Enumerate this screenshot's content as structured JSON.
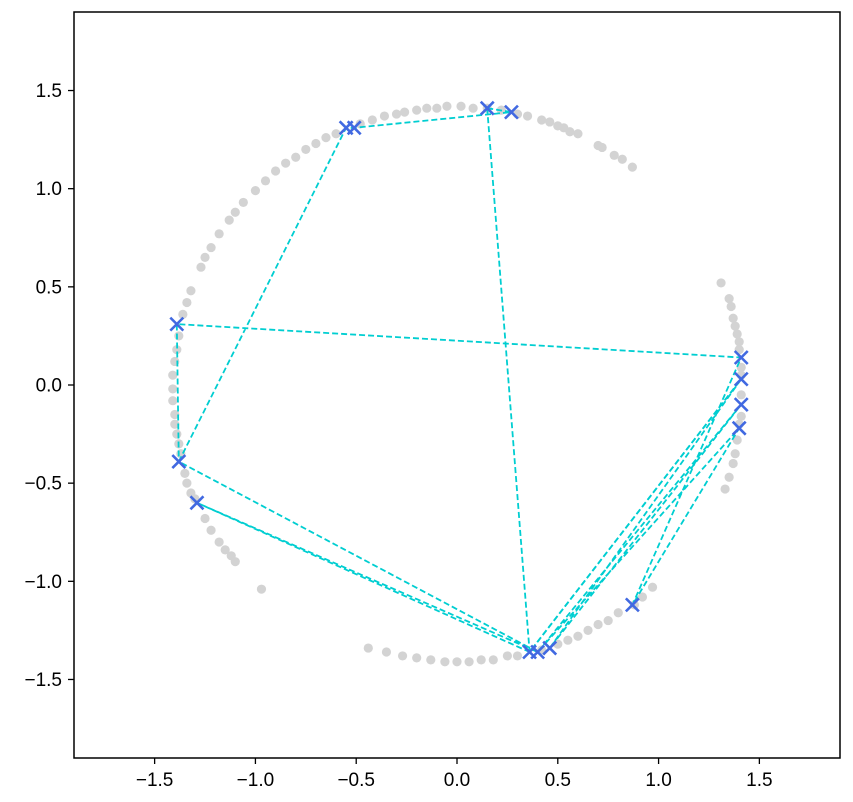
{
  "chart_data": {
    "type": "scatter",
    "title": "",
    "xlabel": "",
    "ylabel": "",
    "xlim": [
      -1.9,
      1.9
    ],
    "ylim": [
      -1.9,
      1.9
    ],
    "grid": false,
    "x_ticks": [
      -1.5,
      -1.0,
      -0.5,
      0.0,
      0.5,
      1.0,
      1.5
    ],
    "y_ticks": [
      -1.5,
      -1.0,
      -0.5,
      0.0,
      0.5,
      1.0,
      1.5
    ],
    "x_tick_labels": [
      "−1.5",
      "−1.0",
      "−0.5",
      "0.0",
      "0.5",
      "1.0",
      "1.5"
    ],
    "y_tick_labels": [
      "−1.5",
      "−1.0",
      "−0.5",
      "0.0",
      "0.5",
      "1.0",
      "1.5"
    ],
    "colors": {
      "background_points": "#d3d3d3",
      "markers": "#4169e1",
      "path": "#00ced1",
      "axes": "#000000"
    },
    "background_points_description": "light gray points scattered around a circle of radius about 1.41",
    "background_points": [
      [
        0.87,
        1.11
      ],
      [
        0.82,
        1.15
      ],
      [
        0.78,
        1.17
      ],
      [
        0.72,
        1.21
      ],
      [
        0.7,
        1.22
      ],
      [
        0.6,
        1.28
      ],
      [
        0.56,
        1.29
      ],
      [
        0.53,
        1.31
      ],
      [
        0.5,
        1.32
      ],
      [
        0.46,
        1.34
      ],
      [
        0.42,
        1.35
      ],
      [
        0.35,
        1.37
      ],
      [
        0.3,
        1.38
      ],
      [
        0.22,
        1.4
      ],
      [
        0.15,
        1.41
      ],
      [
        0.08,
        1.41
      ],
      [
        0.02,
        1.42
      ],
      [
        -0.05,
        1.42
      ],
      [
        -0.1,
        1.41
      ],
      [
        -0.15,
        1.41
      ],
      [
        -0.2,
        1.4
      ],
      [
        -0.26,
        1.39
      ],
      [
        -0.3,
        1.38
      ],
      [
        -0.36,
        1.37
      ],
      [
        -0.42,
        1.35
      ],
      [
        -0.48,
        1.33
      ],
      [
        -0.6,
        1.28
      ],
      [
        -0.65,
        1.26
      ],
      [
        -0.7,
        1.23
      ],
      [
        -0.75,
        1.2
      ],
      [
        -0.8,
        1.16
      ],
      [
        -0.85,
        1.13
      ],
      [
        -0.9,
        1.09
      ],
      [
        -0.95,
        1.04
      ],
      [
        -1.0,
        0.99
      ],
      [
        -1.06,
        0.93
      ],
      [
        -1.1,
        0.88
      ],
      [
        -1.13,
        0.84
      ],
      [
        -1.18,
        0.77
      ],
      [
        -1.22,
        0.7
      ],
      [
        -1.25,
        0.65
      ],
      [
        -1.27,
        0.6
      ],
      [
        -1.32,
        0.48
      ],
      [
        -1.34,
        0.42
      ],
      [
        -1.36,
        0.36
      ],
      [
        -1.38,
        0.25
      ],
      [
        -1.39,
        0.18
      ],
      [
        -1.4,
        0.12
      ],
      [
        -1.41,
        0.05
      ],
      [
        -1.41,
        -0.02
      ],
      [
        -1.41,
        -0.08
      ],
      [
        -1.4,
        -0.15
      ],
      [
        -1.4,
        -0.2
      ],
      [
        -1.39,
        -0.25
      ],
      [
        -1.38,
        -0.3
      ],
      [
        -1.37,
        -0.35
      ],
      [
        -1.35,
        -0.45
      ],
      [
        -1.34,
        -0.5
      ],
      [
        -1.32,
        -0.55
      ],
      [
        -1.3,
        -0.58
      ],
      [
        -1.25,
        -0.68
      ],
      [
        -1.22,
        -0.74
      ],
      [
        -1.18,
        -0.8
      ],
      [
        -1.15,
        -0.84
      ],
      [
        -1.12,
        -0.87
      ],
      [
        -1.1,
        -0.9
      ],
      [
        -0.97,
        -1.04
      ],
      [
        -0.44,
        -1.34
      ],
      [
        -0.35,
        -1.36
      ],
      [
        -0.27,
        -1.38
      ],
      [
        -0.2,
        -1.39
      ],
      [
        -0.13,
        -1.4
      ],
      [
        -0.06,
        -1.41
      ],
      [
        0.0,
        -1.41
      ],
      [
        0.06,
        -1.41
      ],
      [
        0.12,
        -1.4
      ],
      [
        0.18,
        -1.4
      ],
      [
        0.25,
        -1.38
      ],
      [
        0.3,
        -1.38
      ],
      [
        0.42,
        -1.35
      ],
      [
        0.5,
        -1.32
      ],
      [
        0.55,
        -1.3
      ],
      [
        0.6,
        -1.28
      ],
      [
        0.65,
        -1.25
      ],
      [
        0.7,
        -1.22
      ],
      [
        0.75,
        -1.2
      ],
      [
        0.8,
        -1.16
      ],
      [
        0.88,
        -1.12
      ],
      [
        0.92,
        -1.08
      ],
      [
        0.97,
        -1.03
      ],
      [
        1.33,
        -0.53
      ],
      [
        1.35,
        -0.47
      ],
      [
        1.37,
        -0.4
      ],
      [
        1.38,
        -0.35
      ],
      [
        1.39,
        -0.28
      ],
      [
        1.4,
        -0.2
      ],
      [
        1.41,
        -0.16
      ],
      [
        1.41,
        -0.05
      ],
      [
        1.41,
        0.05
      ],
      [
        1.41,
        0.09
      ],
      [
        1.4,
        0.18
      ],
      [
        1.4,
        0.22
      ],
      [
        1.39,
        0.26
      ],
      [
        1.38,
        0.3
      ],
      [
        1.37,
        0.34
      ],
      [
        1.36,
        0.4
      ],
      [
        1.35,
        0.44
      ],
      [
        1.31,
        0.52
      ]
    ],
    "markers": [
      [
        0.15,
        1.41
      ],
      [
        0.27,
        1.39
      ],
      [
        -0.55,
        1.31
      ],
      [
        -0.51,
        1.31
      ],
      [
        -1.39,
        0.31
      ],
      [
        -1.38,
        -0.39
      ],
      [
        -1.29,
        -0.6
      ],
      [
        0.36,
        -1.36
      ],
      [
        0.4,
        -1.36
      ],
      [
        0.46,
        -1.34
      ],
      [
        0.87,
        -1.12
      ],
      [
        1.41,
        0.14
      ],
      [
        1.41,
        0.03
      ],
      [
        1.41,
        -0.1
      ],
      [
        1.4,
        -0.22
      ]
    ],
    "path": [
      [
        0.15,
        1.41
      ],
      [
        0.27,
        1.39
      ],
      [
        -0.51,
        1.31
      ],
      [
        -0.55,
        1.31
      ],
      [
        -1.38,
        -0.39
      ],
      [
        0.4,
        -1.36
      ],
      [
        -1.29,
        -0.6
      ],
      [
        0.36,
        -1.36
      ],
      [
        1.41,
        0.03
      ],
      [
        0.46,
        -1.34
      ],
      [
        1.41,
        -0.1
      ],
      [
        0.4,
        -1.36
      ],
      [
        1.4,
        -0.22
      ],
      [
        0.87,
        -1.12
      ],
      [
        1.41,
        0.14
      ],
      [
        -1.39,
        0.31
      ],
      [
        -1.38,
        -0.39
      ]
    ],
    "path2": [
      [
        0.15,
        1.41
      ],
      [
        0.36,
        -1.36
      ],
      [
        1.41,
        0.03
      ]
    ]
  }
}
